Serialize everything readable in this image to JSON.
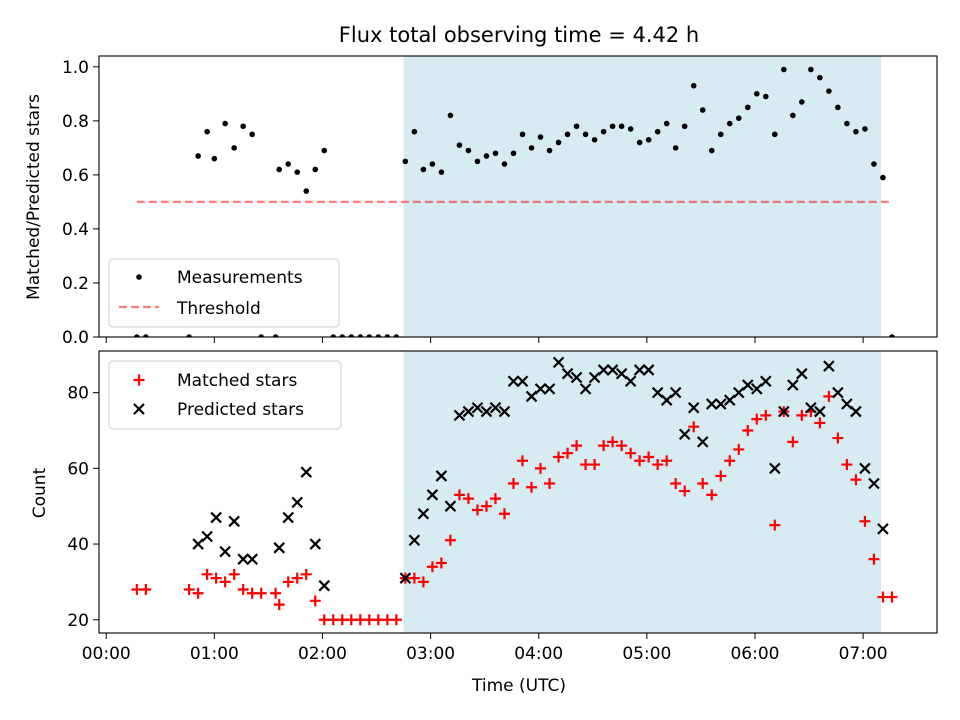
{
  "chart_data": [
    {
      "type": "scatter",
      "title": "Flux total observing time = 4.42 h",
      "ylabel": "Matched/Predicted stars",
      "ylim": [
        0,
        1.04
      ],
      "yticks": [
        0,
        0.2,
        0.4,
        0.6,
        0.8,
        1.0
      ],
      "ytick_labels": [
        "0.0",
        "0.2",
        "0.4",
        "0.6",
        "0.8",
        "1.0"
      ],
      "shaded_span": {
        "start": "02:45",
        "end": "07:10",
        "color": "#add8e6"
      },
      "threshold": {
        "y": 0.5,
        "x_start": "00:17",
        "x_end": "07:15"
      },
      "legend": {
        "position": "lower-left",
        "entries": [
          "Measurements",
          "Threshold"
        ]
      },
      "series": [
        {
          "name": "Measurements",
          "color": "#000000",
          "marker": "dot",
          "points": [
            [
              "00:17",
              0
            ],
            [
              "00:22",
              0
            ],
            [
              "00:46",
              0
            ],
            [
              "00:51",
              0.67
            ],
            [
              "00:56",
              0.76
            ],
            [
              "01:00",
              0.66
            ],
            [
              "01:06",
              0.79
            ],
            [
              "01:11",
              0.7
            ],
            [
              "01:16",
              0.78
            ],
            [
              "01:21",
              0.75
            ],
            [
              "01:26",
              0
            ],
            [
              "01:34",
              0
            ],
            [
              "01:36",
              0.62
            ],
            [
              "01:41",
              0.64
            ],
            [
              "01:46",
              0.61
            ],
            [
              "01:51",
              0.54
            ],
            [
              "01:56",
              0.62
            ],
            [
              "02:01",
              0.69
            ],
            [
              "02:06",
              0
            ],
            [
              "02:11",
              0
            ],
            [
              "02:16",
              0
            ],
            [
              "02:21",
              0
            ],
            [
              "02:26",
              0
            ],
            [
              "02:31",
              0
            ],
            [
              "02:36",
              0
            ],
            [
              "02:41",
              0
            ],
            [
              "02:46",
              0.65
            ],
            [
              "02:51",
              0.76
            ],
            [
              "02:56",
              0.62
            ],
            [
              "03:01",
              0.64
            ],
            [
              "03:06",
              0.61
            ],
            [
              "03:11",
              0.82
            ],
            [
              "03:16",
              0.71
            ],
            [
              "03:21",
              0.69
            ],
            [
              "03:26",
              0.65
            ],
            [
              "03:31",
              0.67
            ],
            [
              "03:36",
              0.68
            ],
            [
              "03:41",
              0.64
            ],
            [
              "03:46",
              0.68
            ],
            [
              "03:51",
              0.75
            ],
            [
              "03:56",
              0.7
            ],
            [
              "04:01",
              0.74
            ],
            [
              "04:06",
              0.69
            ],
            [
              "04:11",
              0.72
            ],
            [
              "04:16",
              0.75
            ],
            [
              "04:21",
              0.78
            ],
            [
              "04:26",
              0.75
            ],
            [
              "04:31",
              0.73
            ],
            [
              "04:36",
              0.76
            ],
            [
              "04:41",
              0.78
            ],
            [
              "04:46",
              0.78
            ],
            [
              "04:51",
              0.77
            ],
            [
              "04:56",
              0.72
            ],
            [
              "05:01",
              0.73
            ],
            [
              "05:06",
              0.76
            ],
            [
              "05:11",
              0.79
            ],
            [
              "05:16",
              0.7
            ],
            [
              "05:21",
              0.78
            ],
            [
              "05:26",
              0.93
            ],
            [
              "05:31",
              0.84
            ],
            [
              "05:36",
              0.69
            ],
            [
              "05:41",
              0.75
            ],
            [
              "05:46",
              0.79
            ],
            [
              "05:51",
              0.81
            ],
            [
              "05:56",
              0.85
            ],
            [
              "06:01",
              0.9
            ],
            [
              "06:06",
              0.89
            ],
            [
              "06:11",
              0.75
            ],
            [
              "06:16",
              0.99
            ],
            [
              "06:21",
              0.82
            ],
            [
              "06:26",
              0.87
            ],
            [
              "06:31",
              0.99
            ],
            [
              "06:36",
              0.96
            ],
            [
              "06:41",
              0.91
            ],
            [
              "06:46",
              0.85
            ],
            [
              "06:51",
              0.79
            ],
            [
              "06:56",
              0.76
            ],
            [
              "07:01",
              0.77
            ],
            [
              "07:06",
              0.64
            ],
            [
              "07:11",
              0.59
            ],
            [
              "07:16",
              0
            ]
          ]
        }
      ]
    },
    {
      "type": "scatter",
      "xlabel": "Time (UTC)",
      "ylabel": "Count",
      "ylim": [
        16.5,
        91
      ],
      "yticks": [
        20,
        40,
        60,
        80
      ],
      "ytick_labels": [
        "20",
        "40",
        "60",
        "80"
      ],
      "xlim": [
        "-00:04",
        "07:41"
      ],
      "xticks": [
        "00:00",
        "01:00",
        "02:00",
        "03:00",
        "04:00",
        "05:00",
        "06:00",
        "07:00"
      ],
      "xtick_labels": [
        "00:00",
        "01:00",
        "02:00",
        "03:00",
        "04:00",
        "05:00",
        "06:00",
        "07:00"
      ],
      "shaded_span": {
        "start": "02:45",
        "end": "07:10",
        "color": "#add8e6"
      },
      "legend": {
        "position": "upper-left",
        "entries": [
          "Matched stars",
          "Predicted stars"
        ]
      },
      "series": [
        {
          "name": "Matched stars",
          "color": "#ff0000",
          "marker": "plus",
          "points": [
            [
              "00:17",
              28
            ],
            [
              "00:22",
              28
            ],
            [
              "00:46",
              28
            ],
            [
              "00:51",
              27
            ],
            [
              "00:56",
              32
            ],
            [
              "01:01",
              31
            ],
            [
              "01:06",
              30
            ],
            [
              "01:11",
              32
            ],
            [
              "01:16",
              28
            ],
            [
              "01:21",
              27
            ],
            [
              "01:26",
              27
            ],
            [
              "01:34",
              27
            ],
            [
              "01:36",
              24
            ],
            [
              "01:41",
              30
            ],
            [
              "01:46",
              31
            ],
            [
              "01:51",
              32
            ],
            [
              "01:56",
              25
            ],
            [
              "02:01",
              20
            ],
            [
              "02:06",
              20
            ],
            [
              "02:11",
              20
            ],
            [
              "02:16",
              20
            ],
            [
              "02:21",
              20
            ],
            [
              "02:26",
              20
            ],
            [
              "02:31",
              20
            ],
            [
              "02:36",
              20
            ],
            [
              "02:41",
              20
            ],
            [
              "02:46",
              31
            ],
            [
              "02:51",
              31
            ],
            [
              "02:56",
              30
            ],
            [
              "03:01",
              34
            ],
            [
              "03:06",
              35
            ],
            [
              "03:11",
              41
            ],
            [
              "03:16",
              53
            ],
            [
              "03:21",
              52
            ],
            [
              "03:26",
              49
            ],
            [
              "03:31",
              50
            ],
            [
              "03:36",
              52
            ],
            [
              "03:41",
              48
            ],
            [
              "03:46",
              56
            ],
            [
              "03:51",
              62
            ],
            [
              "03:56",
              55
            ],
            [
              "04:01",
              60
            ],
            [
              "04:06",
              56
            ],
            [
              "04:11",
              63
            ],
            [
              "04:16",
              64
            ],
            [
              "04:21",
              66
            ],
            [
              "04:26",
              61
            ],
            [
              "04:31",
              61
            ],
            [
              "04:36",
              66
            ],
            [
              "04:41",
              67
            ],
            [
              "04:46",
              66
            ],
            [
              "04:51",
              64
            ],
            [
              "04:56",
              62
            ],
            [
              "05:01",
              63
            ],
            [
              "05:06",
              61
            ],
            [
              "05:11",
              62
            ],
            [
              "05:16",
              56
            ],
            [
              "05:21",
              54
            ],
            [
              "05:26",
              71
            ],
            [
              "05:31",
              56
            ],
            [
              "05:36",
              53
            ],
            [
              "05:41",
              58
            ],
            [
              "05:46",
              62
            ],
            [
              "05:51",
              65
            ],
            [
              "05:56",
              70
            ],
            [
              "06:01",
              73
            ],
            [
              "06:06",
              74
            ],
            [
              "06:11",
              45
            ],
            [
              "06:16",
              75
            ],
            [
              "06:21",
              67
            ],
            [
              "06:26",
              74
            ],
            [
              "06:31",
              75
            ],
            [
              "06:36",
              72
            ],
            [
              "06:41",
              79
            ],
            [
              "06:46",
              68
            ],
            [
              "06:51",
              61
            ],
            [
              "06:56",
              57
            ],
            [
              "07:01",
              46
            ],
            [
              "07:06",
              36
            ],
            [
              "07:11",
              26
            ],
            [
              "07:16",
              26
            ]
          ]
        },
        {
          "name": "Predicted stars",
          "color": "#000000",
          "marker": "x",
          "points": [
            [
              "00:51",
              40
            ],
            [
              "00:56",
              42
            ],
            [
              "01:01",
              47
            ],
            [
              "01:06",
              38
            ],
            [
              "01:11",
              46
            ],
            [
              "01:16",
              36
            ],
            [
              "01:21",
              36
            ],
            [
              "01:36",
              39
            ],
            [
              "01:41",
              47
            ],
            [
              "01:46",
              51
            ],
            [
              "01:51",
              59
            ],
            [
              "01:56",
              40
            ],
            [
              "02:01",
              29
            ],
            [
              "02:46",
              31
            ],
            [
              "02:51",
              41
            ],
            [
              "02:56",
              48
            ],
            [
              "03:01",
              53
            ],
            [
              "03:06",
              58
            ],
            [
              "03:11",
              50
            ],
            [
              "03:16",
              74
            ],
            [
              "03:21",
              75
            ],
            [
              "03:26",
              76
            ],
            [
              "03:31",
              75
            ],
            [
              "03:36",
              76
            ],
            [
              "03:41",
              75
            ],
            [
              "03:46",
              83
            ],
            [
              "03:51",
              83
            ],
            [
              "03:56",
              79
            ],
            [
              "04:01",
              81
            ],
            [
              "04:06",
              81
            ],
            [
              "04:11",
              88
            ],
            [
              "04:16",
              85
            ],
            [
              "04:21",
              84
            ],
            [
              "04:26",
              81
            ],
            [
              "04:31",
              84
            ],
            [
              "04:36",
              86
            ],
            [
              "04:41",
              86
            ],
            [
              "04:46",
              85
            ],
            [
              "04:51",
              83
            ],
            [
              "04:56",
              86
            ],
            [
              "05:01",
              86
            ],
            [
              "05:06",
              80
            ],
            [
              "05:11",
              78
            ],
            [
              "05:16",
              80
            ],
            [
              "05:21",
              69
            ],
            [
              "05:26",
              76
            ],
            [
              "05:31",
              67
            ],
            [
              "05:36",
              77
            ],
            [
              "05:41",
              77
            ],
            [
              "05:46",
              78
            ],
            [
              "05:51",
              80
            ],
            [
              "05:56",
              82
            ],
            [
              "06:01",
              81
            ],
            [
              "06:06",
              83
            ],
            [
              "06:11",
              60
            ],
            [
              "06:16",
              75
            ],
            [
              "06:21",
              82
            ],
            [
              "06:26",
              85
            ],
            [
              "06:31",
              76
            ],
            [
              "06:36",
              75
            ],
            [
              "06:41",
              87
            ],
            [
              "06:46",
              80
            ],
            [
              "06:51",
              77
            ],
            [
              "06:56",
              75
            ],
            [
              "07:01",
              60
            ],
            [
              "07:06",
              56
            ],
            [
              "07:11",
              44
            ]
          ]
        }
      ]
    }
  ]
}
